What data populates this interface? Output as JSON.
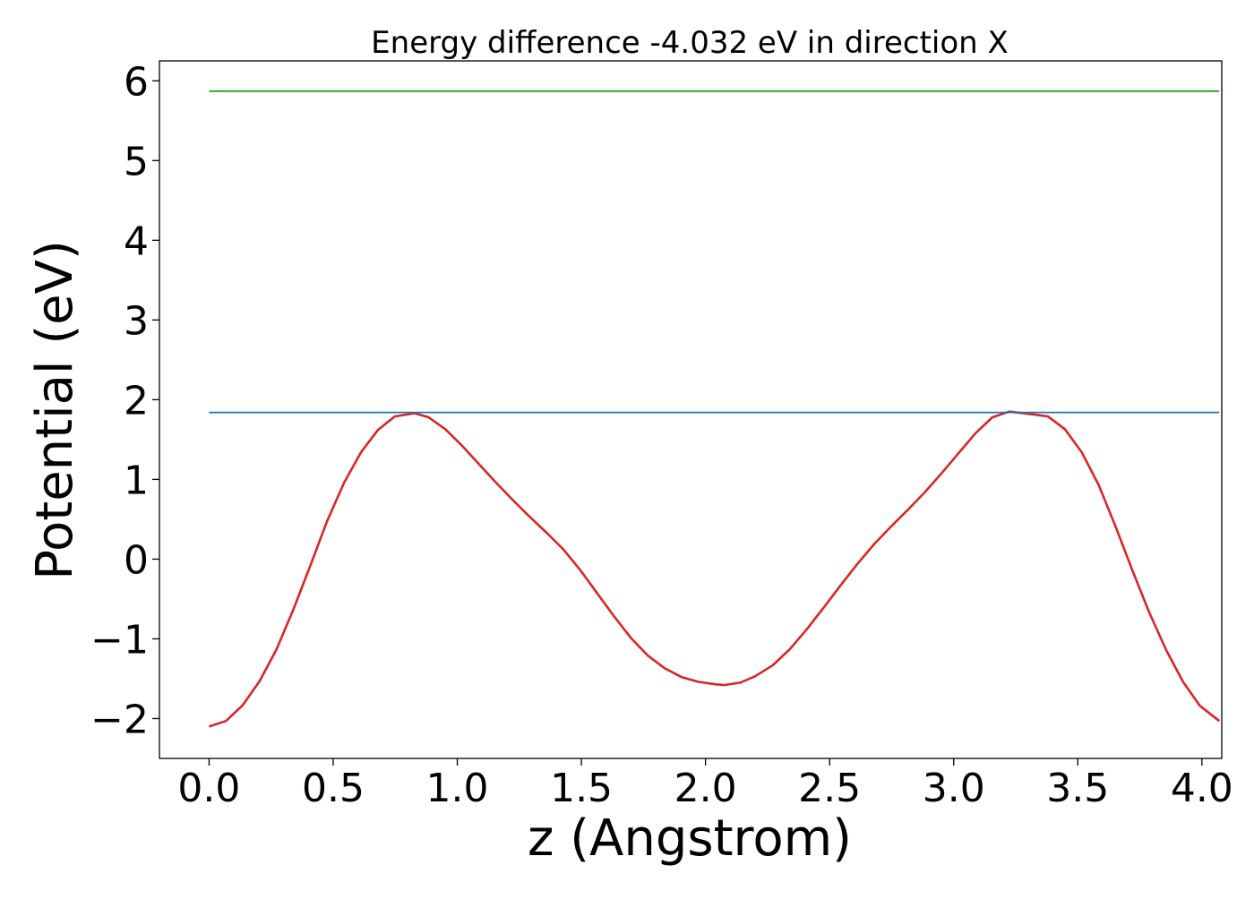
{
  "chart_data": {
    "type": "line",
    "title": "Energy difference -4.032 eV in direction X",
    "xlabel": "z (Angstrom)",
    "ylabel": "Potential (eV)",
    "xlim": [
      -0.2,
      4.08
    ],
    "ylim": [
      -2.5,
      6.25
    ],
    "xticks": [
      0.0,
      0.5,
      1.0,
      1.5,
      2.0,
      2.5,
      3.0,
      3.5,
      4.0
    ],
    "xtick_labels": [
      "0.0",
      "0.5",
      "1.0",
      "1.5",
      "2.0",
      "2.5",
      "3.0",
      "3.5",
      "4.0"
    ],
    "yticks": [
      -2,
      -1,
      0,
      1,
      2,
      3,
      4,
      5,
      6
    ],
    "ytick_labels": [
      "−2",
      "−1",
      "0",
      "1",
      "2",
      "3",
      "4",
      "5",
      "6"
    ],
    "grid": false,
    "series": [
      {
        "color": "#d62728",
        "x": [
          0.0,
          0.068,
          0.136,
          0.204,
          0.272,
          0.34,
          0.408,
          0.476,
          0.544,
          0.612,
          0.68,
          0.748,
          0.828,
          0.884,
          0.952,
          1.02,
          1.088,
          1.156,
          1.224,
          1.292,
          1.36,
          1.428,
          1.496,
          1.564,
          1.632,
          1.7,
          1.768,
          1.836,
          1.904,
          1.972,
          2.04,
          2.075,
          2.14,
          2.2,
          2.272,
          2.34,
          2.408,
          2.476,
          2.544,
          2.612,
          2.68,
          2.748,
          2.816,
          2.884,
          2.952,
          3.02,
          3.088,
          3.156,
          3.224,
          3.31,
          3.38,
          3.448,
          3.516,
          3.584,
          3.652,
          3.72,
          3.788,
          3.856,
          3.924,
          3.992,
          4.07
        ],
        "y": [
          -2.1,
          -2.03,
          -1.83,
          -1.53,
          -1.13,
          -0.63,
          -0.08,
          0.48,
          0.96,
          1.34,
          1.62,
          1.79,
          1.83,
          1.78,
          1.63,
          1.42,
          1.19,
          0.96,
          0.74,
          0.53,
          0.33,
          0.12,
          -0.14,
          -0.43,
          -0.72,
          -0.99,
          -1.21,
          -1.37,
          -1.48,
          -1.54,
          -1.57,
          -1.58,
          -1.55,
          -1.47,
          -1.33,
          -1.13,
          -0.88,
          -0.61,
          -0.33,
          -0.06,
          0.19,
          0.41,
          0.62,
          0.84,
          1.08,
          1.33,
          1.58,
          1.78,
          1.85,
          1.82,
          1.79,
          1.63,
          1.34,
          0.93,
          0.41,
          -0.14,
          -0.67,
          -1.14,
          -1.54,
          -1.84,
          -2.03
        ]
      },
      {
        "color": "#1f77b4",
        "x": [
          0.0,
          4.07
        ],
        "y": [
          1.84,
          1.84
        ]
      },
      {
        "color": "#2ca02c",
        "x": [
          0.0,
          4.07
        ],
        "y": [
          5.87,
          5.87
        ]
      }
    ]
  }
}
